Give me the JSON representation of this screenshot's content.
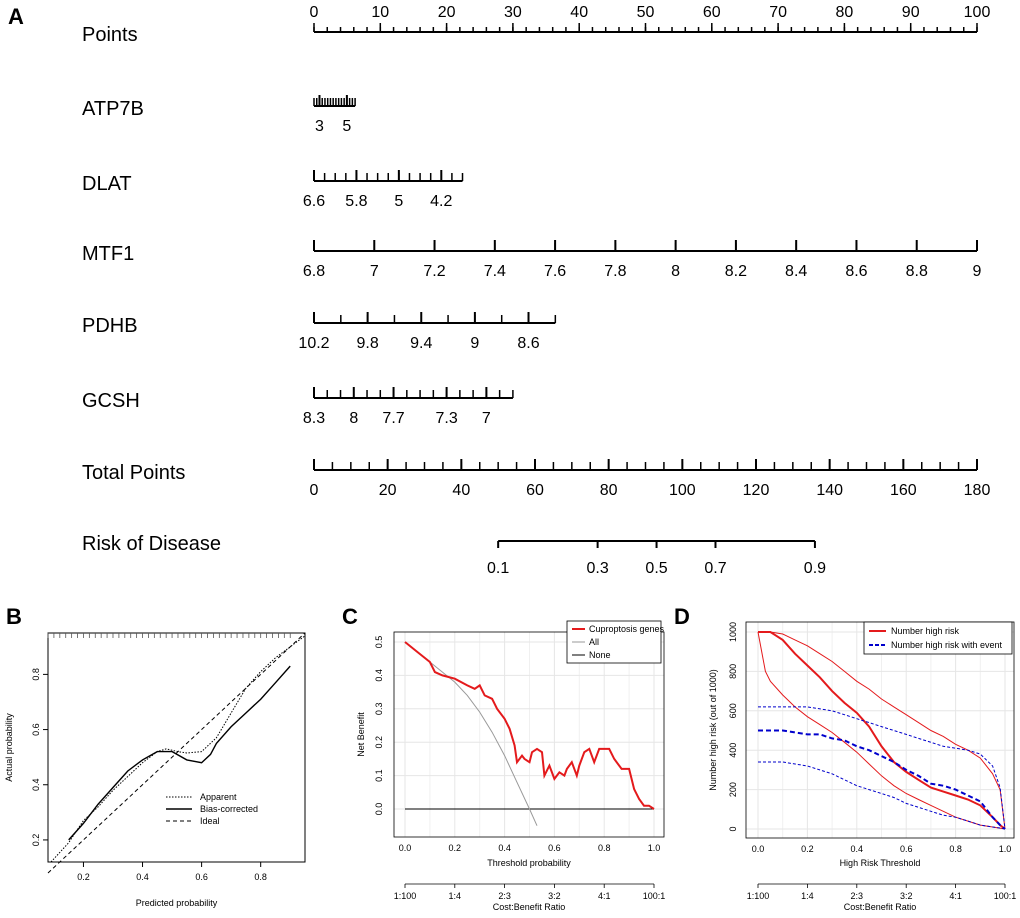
{
  "panels": [
    "A",
    "B",
    "C",
    "D"
  ],
  "chart_data": [
    {
      "panel": "A",
      "type": "nomogram",
      "rows": [
        {
          "label": "Points",
          "scale_min": 0,
          "scale_max": 100,
          "points_min": 0,
          "points_max": 100,
          "ticks": [
            "0",
            "10",
            "20",
            "30",
            "40",
            "50",
            "60",
            "70",
            "80",
            "90",
            "100"
          ],
          "minor_step": 2
        },
        {
          "label": "ATP7B",
          "scale_min": 2.6,
          "scale_max": 5.6,
          "points_min": 0,
          "points_max": 6.2,
          "ticks": [
            "3",
            "5"
          ],
          "tick_values": [
            3,
            5
          ],
          "minor_step": 0.2
        },
        {
          "label": "DLAT",
          "scale_min": 6.6,
          "scale_max": 3.8,
          "points_min": 0,
          "points_max": 22.4,
          "ticks": [
            "6.6",
            "5.8",
            "5",
            "4.2"
          ],
          "tick_values": [
            6.6,
            5.8,
            5,
            4.2
          ],
          "minor_step": 0.2
        },
        {
          "label": "MTF1",
          "scale_min": 6.8,
          "scale_max": 9,
          "points_min": 0,
          "points_max": 100,
          "ticks": [
            "6.8",
            "7",
            "7.2",
            "7.4",
            "7.6",
            "7.8",
            "8",
            "8.2",
            "8.4",
            "8.6",
            "8.8",
            "9"
          ],
          "minor_step": 0.2
        },
        {
          "label": "PDHB",
          "scale_min": 10.2,
          "scale_max": 8.4,
          "points_min": 0,
          "points_max": 36.4,
          "ticks": [
            "10.2",
            "9.8",
            "9.4",
            "9",
            "8.6"
          ],
          "tick_values": [
            10.2,
            9.8,
            9.4,
            9,
            8.6
          ],
          "minor_step": 0.2
        },
        {
          "label": "GCSH",
          "scale_min": 8.3,
          "scale_max": 6.8,
          "points_min": 0,
          "points_max": 30,
          "ticks": [
            "8.3",
            "8",
            "7.7",
            "7.3",
            "7"
          ],
          "tick_values": [
            8.3,
            8,
            7.7,
            7.3,
            7
          ],
          "minor_step": 0.1
        },
        {
          "label": "Total Points",
          "scale_min": 0,
          "scale_max": 180,
          "points_min": 0,
          "points_max": 100,
          "ticks": [
            "0",
            "20",
            "40",
            "60",
            "80",
            "100",
            "120",
            "140",
            "160",
            "180"
          ],
          "minor_step": 5
        },
        {
          "label": "Risk of Disease",
          "type": "risk",
          "ticks": [
            "0.1",
            "0.3",
            "0.5",
            "0.7",
            "0.9"
          ],
          "tick_values": [
            0.1,
            0.3,
            0.5,
            0.7,
            0.9
          ],
          "total_points_at_ticks": [
            50,
            77,
            93,
            109,
            136
          ]
        }
      ]
    },
    {
      "panel": "B",
      "type": "line",
      "title": "",
      "xlabel": "Predicted probability",
      "ylabel": "Actual probability",
      "xlim": [
        0.08,
        0.95
      ],
      "ylim": [
        0.12,
        0.95
      ],
      "xticks": [
        "0.2",
        "0.4",
        "0.6",
        "0.8"
      ],
      "xtick_values": [
        0.2,
        0.4,
        0.6,
        0.8
      ],
      "yticks": [
        "0.2",
        "0.4",
        "0.6",
        "0.8"
      ],
      "ytick_values": [
        0.2,
        0.4,
        0.6,
        0.8
      ],
      "series": [
        {
          "name": "Apparent",
          "style": "dotted",
          "x": [
            0.09,
            0.15,
            0.2,
            0.25,
            0.3,
            0.35,
            0.4,
            0.45,
            0.48,
            0.52,
            0.55,
            0.6,
            0.65,
            0.7,
            0.75,
            0.8,
            0.85,
            0.9,
            0.95
          ],
          "y": [
            0.12,
            0.19,
            0.27,
            0.32,
            0.38,
            0.43,
            0.48,
            0.52,
            0.53,
            0.52,
            0.515,
            0.52,
            0.57,
            0.66,
            0.75,
            0.81,
            0.86,
            0.9,
            0.94
          ]
        },
        {
          "name": "Bias-corrected",
          "style": "solid",
          "x": [
            0.15,
            0.2,
            0.25,
            0.3,
            0.35,
            0.4,
            0.45,
            0.48,
            0.5,
            0.55,
            0.6,
            0.63,
            0.65,
            0.7,
            0.75,
            0.8,
            0.85,
            0.9
          ],
          "y": [
            0.2,
            0.26,
            0.33,
            0.39,
            0.45,
            0.49,
            0.52,
            0.52,
            0.52,
            0.49,
            0.48,
            0.51,
            0.55,
            0.61,
            0.66,
            0.71,
            0.77,
            0.83
          ]
        },
        {
          "name": "Ideal",
          "style": "dashed",
          "x": [
            0.08,
            0.95
          ],
          "y": [
            0.08,
            0.95
          ]
        }
      ],
      "rug": [
        0.08,
        0.1,
        0.12,
        0.14,
        0.16,
        0.18,
        0.2,
        0.22,
        0.24,
        0.26,
        0.28,
        0.3,
        0.32,
        0.34,
        0.36,
        0.38,
        0.4,
        0.42,
        0.44,
        0.46,
        0.48,
        0.5,
        0.52,
        0.54,
        0.56,
        0.58,
        0.6,
        0.62,
        0.64,
        0.66,
        0.68,
        0.7,
        0.72,
        0.74,
        0.76,
        0.78,
        0.8,
        0.82,
        0.84,
        0.86,
        0.88,
        0.9
      ],
      "legend": [
        "Apparent",
        "Bias-corrected",
        "Ideal"
      ],
      "legend_position": "bottom-right"
    },
    {
      "panel": "C",
      "type": "line",
      "xlabel": "Threshold probability",
      "ylabel": "Net Benefit",
      "xlim": [
        0,
        1
      ],
      "ylim": [
        -0.05,
        0.5
      ],
      "xticks": [
        "0.0",
        "0.2",
        "0.4",
        "0.6",
        "0.8",
        "1.0"
      ],
      "xtick_values": [
        0,
        0.2,
        0.4,
        0.6,
        0.8,
        1.0
      ],
      "yticks": [
        "0.0",
        "0.1",
        "0.2",
        "0.3",
        "0.4",
        "0.5"
      ],
      "ytick_values": [
        0,
        0.1,
        0.2,
        0.3,
        0.4,
        0.5
      ],
      "cost_benefit_label": "Cost:Benefit Ratio",
      "cost_benefit_ticks": [
        "1:100",
        "1:4",
        "2:3",
        "3:2",
        "4:1",
        "100:1"
      ],
      "series": [
        {
          "name": "Cuproptosis genes",
          "color": "#e41a1c",
          "x": [
            0,
            0.05,
            0.1,
            0.12,
            0.15,
            0.2,
            0.25,
            0.28,
            0.3,
            0.32,
            0.35,
            0.37,
            0.4,
            0.42,
            0.44,
            0.45,
            0.47,
            0.48,
            0.5,
            0.51,
            0.53,
            0.55,
            0.56,
            0.58,
            0.6,
            0.62,
            0.64,
            0.65,
            0.67,
            0.69,
            0.7,
            0.72,
            0.74,
            0.76,
            0.78,
            0.8,
            0.82,
            0.84,
            0.87,
            0.9,
            0.92,
            0.94,
            0.96,
            0.98,
            1.0
          ],
          "y": [
            0.5,
            0.47,
            0.44,
            0.41,
            0.4,
            0.39,
            0.37,
            0.36,
            0.37,
            0.34,
            0.33,
            0.3,
            0.27,
            0.24,
            0.19,
            0.14,
            0.16,
            0.15,
            0.14,
            0.17,
            0.18,
            0.17,
            0.1,
            0.13,
            0.09,
            0.11,
            0.1,
            0.12,
            0.14,
            0.1,
            0.13,
            0.17,
            0.18,
            0.14,
            0.18,
            0.18,
            0.18,
            0.15,
            0.12,
            0.12,
            0.06,
            0.03,
            0.01,
            0.01,
            0.0
          ]
        },
        {
          "name": "All",
          "color": "#999999",
          "x": [
            0,
            0.1,
            0.2,
            0.25,
            0.3,
            0.35,
            0.4,
            0.45,
            0.5,
            0.53
          ],
          "y": [
            0.5,
            0.44,
            0.38,
            0.34,
            0.29,
            0.23,
            0.16,
            0.08,
            0.0,
            -0.05
          ]
        },
        {
          "name": "None",
          "color": "#000000",
          "x": [
            0,
            1
          ],
          "y": [
            0,
            0
          ]
        }
      ],
      "legend": [
        "Cuproptosis genes",
        "All",
        "None"
      ],
      "legend_position": "top-right"
    },
    {
      "panel": "D",
      "type": "line",
      "xlabel": "High Risk Threshold",
      "ylabel": "Number high risk (out of 1000)",
      "xlim": [
        0,
        1
      ],
      "ylim": [
        0,
        1000
      ],
      "xticks": [
        "0.0",
        "0.2",
        "0.4",
        "0.6",
        "0.8",
        "1.0"
      ],
      "xtick_values": [
        0,
        0.2,
        0.4,
        0.6,
        0.8,
        1.0
      ],
      "yticks": [
        "0",
        "200",
        "400",
        "600",
        "800",
        "1000"
      ],
      "ytick_values": [
        0,
        200,
        400,
        600,
        800,
        1000
      ],
      "cost_benefit_label": "Cost:Benefit Ratio",
      "cost_benefit_ticks": [
        "1:100",
        "1:4",
        "2:3",
        "3:2",
        "4:1",
        "100:1"
      ],
      "series": [
        {
          "name": "Number high risk",
          "color": "#e41a1c",
          "role": "main",
          "x": [
            0,
            0.05,
            0.1,
            0.15,
            0.2,
            0.25,
            0.3,
            0.35,
            0.4,
            0.45,
            0.5,
            0.55,
            0.6,
            0.65,
            0.7,
            0.75,
            0.8,
            0.85,
            0.9,
            0.95,
            0.98,
            1.0
          ],
          "y": [
            1000,
            1000,
            960,
            890,
            830,
            770,
            700,
            640,
            590,
            520,
            420,
            340,
            290,
            250,
            210,
            190,
            170,
            150,
            120,
            60,
            20,
            0
          ]
        },
        {
          "name": "Number high risk upper",
          "color": "#e41a1c",
          "role": "ci",
          "x": [
            0,
            0.05,
            0.1,
            0.15,
            0.2,
            0.25,
            0.3,
            0.35,
            0.4,
            0.45,
            0.5,
            0.55,
            0.6,
            0.65,
            0.7,
            0.75,
            0.8,
            0.85,
            0.9,
            0.95,
            0.98,
            1.0
          ],
          "y": [
            1000,
            1000,
            990,
            960,
            930,
            890,
            850,
            800,
            750,
            710,
            660,
            620,
            580,
            540,
            500,
            470,
            430,
            400,
            360,
            280,
            200,
            0
          ]
        },
        {
          "name": "Number high risk lower",
          "color": "#e41a1c",
          "role": "ci",
          "x": [
            0,
            0.03,
            0.05,
            0.1,
            0.15,
            0.2,
            0.25,
            0.3,
            0.35,
            0.4,
            0.45,
            0.5,
            0.55,
            0.6,
            0.65,
            0.7,
            0.75,
            0.8,
            0.85,
            0.9,
            0.95,
            1.0
          ],
          "y": [
            1000,
            800,
            750,
            680,
            620,
            570,
            530,
            490,
            440,
            390,
            330,
            270,
            220,
            180,
            150,
            120,
            90,
            60,
            40,
            20,
            10,
            0
          ]
        },
        {
          "name": "Number high risk with event",
          "color": "#0000cc",
          "role": "main",
          "x": [
            0,
            0.1,
            0.2,
            0.25,
            0.3,
            0.35,
            0.4,
            0.45,
            0.5,
            0.55,
            0.6,
            0.65,
            0.7,
            0.75,
            0.8,
            0.85,
            0.9,
            0.95,
            0.98,
            1.0
          ],
          "y": [
            500,
            500,
            480,
            480,
            460,
            450,
            420,
            400,
            370,
            340,
            300,
            270,
            230,
            220,
            200,
            170,
            140,
            60,
            20,
            0
          ]
        },
        {
          "name": "Number high risk with event upper",
          "color": "#0000cc",
          "role": "ci",
          "x": [
            0,
            0.1,
            0.2,
            0.3,
            0.35,
            0.4,
            0.45,
            0.5,
            0.55,
            0.6,
            0.65,
            0.7,
            0.75,
            0.8,
            0.85,
            0.9,
            0.95,
            0.98,
            1.0
          ],
          "y": [
            620,
            620,
            620,
            600,
            580,
            560,
            540,
            520,
            500,
            480,
            460,
            440,
            420,
            410,
            400,
            380,
            320,
            210,
            0
          ]
        },
        {
          "name": "Number high risk with event lower",
          "color": "#0000cc",
          "role": "ci",
          "x": [
            0,
            0.1,
            0.2,
            0.25,
            0.3,
            0.35,
            0.4,
            0.45,
            0.5,
            0.55,
            0.6,
            0.65,
            0.7,
            0.75,
            0.8,
            0.85,
            0.9,
            0.95,
            0.98,
            1.0
          ],
          "y": [
            340,
            340,
            320,
            300,
            280,
            250,
            220,
            200,
            180,
            160,
            130,
            110,
            90,
            70,
            60,
            40,
            20,
            10,
            5,
            0
          ]
        }
      ],
      "legend": [
        "Number high risk",
        "Number high risk with event"
      ],
      "legend_position": "top-right"
    }
  ]
}
